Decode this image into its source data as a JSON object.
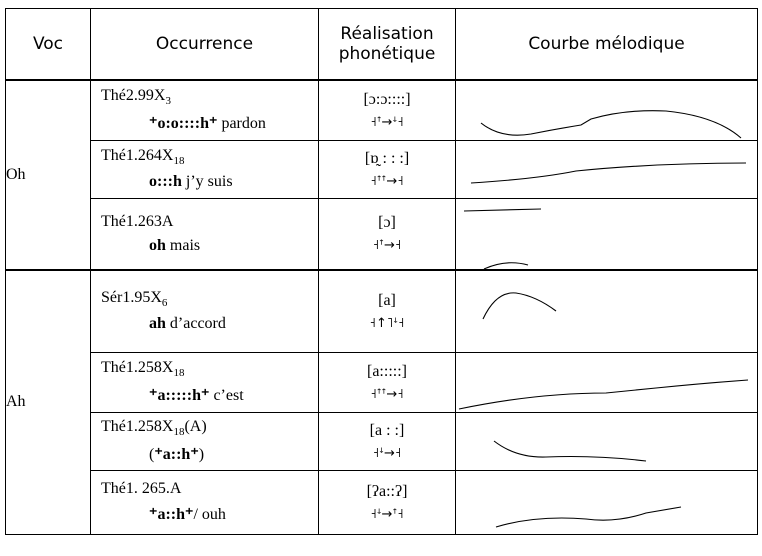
{
  "header": {
    "columns": [
      "Voc",
      "Occurrence",
      "Réalisation phonétique",
      "Courbe mélodique"
    ]
  },
  "groups": [
    {
      "voc": "Oh",
      "rows": [
        {
          "ref": "Thé2.99X",
          "sub": "3",
          "phrase": [
            {
              "text": "⁺o:o::::h⁺",
              "bold": true
            },
            {
              "text": " pardon",
              "bold": false
            }
          ],
          "transcription": "[ɔ:ɔ::::]",
          "contour": "˧ꜛ→ꜜ˧"
        },
        {
          "ref": "Thé1.264X",
          "sub": "18",
          "phrase": [
            {
              "text": "o:::h",
              "bold": true
            },
            {
              "text": " j’y suis",
              "bold": false
            }
          ],
          "transcription": "[ɒ̰ : : :]",
          "contour": "˧ꜛꜛ→˧"
        },
        {
          "ref": "Thé1.263A",
          "phrase": [
            {
              "text": "oh",
              "bold": true
            },
            {
              "text": " mais",
              "bold": false
            }
          ],
          "transcription": "[ɔ]",
          "contour": "˧ꜛ→˧"
        }
      ]
    },
    {
      "voc": "Ah",
      "rows": [
        {
          "ref": "Sér1.95X",
          "sub": "6",
          "phrase": [
            {
              "text": "ah",
              "bold": true
            },
            {
              "text": " d’accord",
              "bold": false
            }
          ],
          "transcription": "[a]",
          "contour": "˧↑˥ꜜ˧"
        },
        {
          "ref": "Thé1.258X",
          "sub": "18",
          "phrase": [
            {
              "text": "⁺a:::::h⁺",
              "bold": true
            },
            {
              "text": " c’est",
              "bold": false
            }
          ],
          "transcription": "[a:::::]",
          "contour": "˧ꜛꜛ→˧"
        },
        {
          "ref": "Thé1.258X",
          "sub": "18",
          "suffix": "(A)",
          "phrase": [
            {
              "text": "(",
              "bold": false
            },
            {
              "text": "⁺a::h⁺",
              "bold": true
            },
            {
              "text": ")",
              "bold": false
            }
          ],
          "transcription": "[a : :]",
          "contour": "˧ꜜ→˧"
        },
        {
          "ref": "Thé1. 265.A",
          "phrase": [
            {
              "text": "⁺a::h⁺",
              "bold": true
            },
            {
              "text": "/ ouh",
              "bold": false
            }
          ],
          "transcription": "[ʔa::ʔ]",
          "contour": "˧ꜜ→ꜛ˧"
        }
      ]
    }
  ]
}
